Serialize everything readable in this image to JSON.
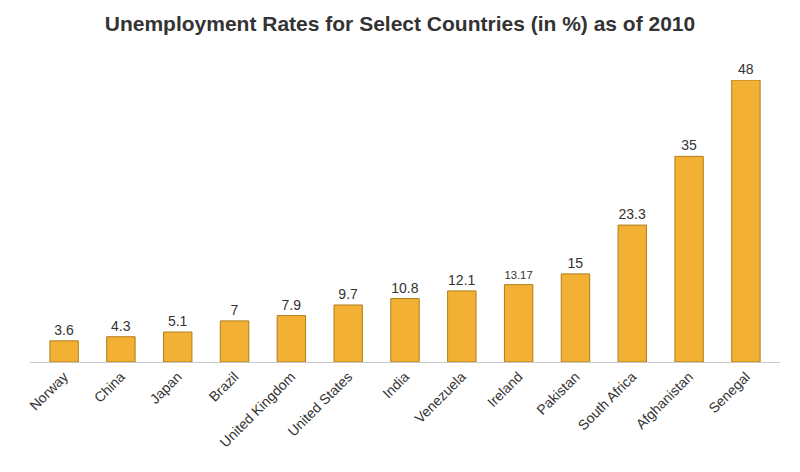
{
  "chart_data": {
    "type": "bar",
    "title": "Unemployment Rates for Select Countries (in %) as of 2010",
    "categories": [
      "Norway",
      "China",
      "Japan",
      "Brazil",
      "United Kingdom",
      "United States",
      "India",
      "Venezuela",
      "Ireland",
      "Pakistan",
      "South Africa",
      "Afghanistan",
      "Senegal"
    ],
    "values": [
      3.6,
      4.3,
      5.1,
      7,
      7.9,
      9.7,
      10.8,
      12.1,
      13.17,
      15,
      23.3,
      35,
      48
    ],
    "color": "#f2b134",
    "ylim": [
      0,
      48
    ],
    "grid": false,
    "data_labels": true,
    "tick_labels": "x"
  }
}
